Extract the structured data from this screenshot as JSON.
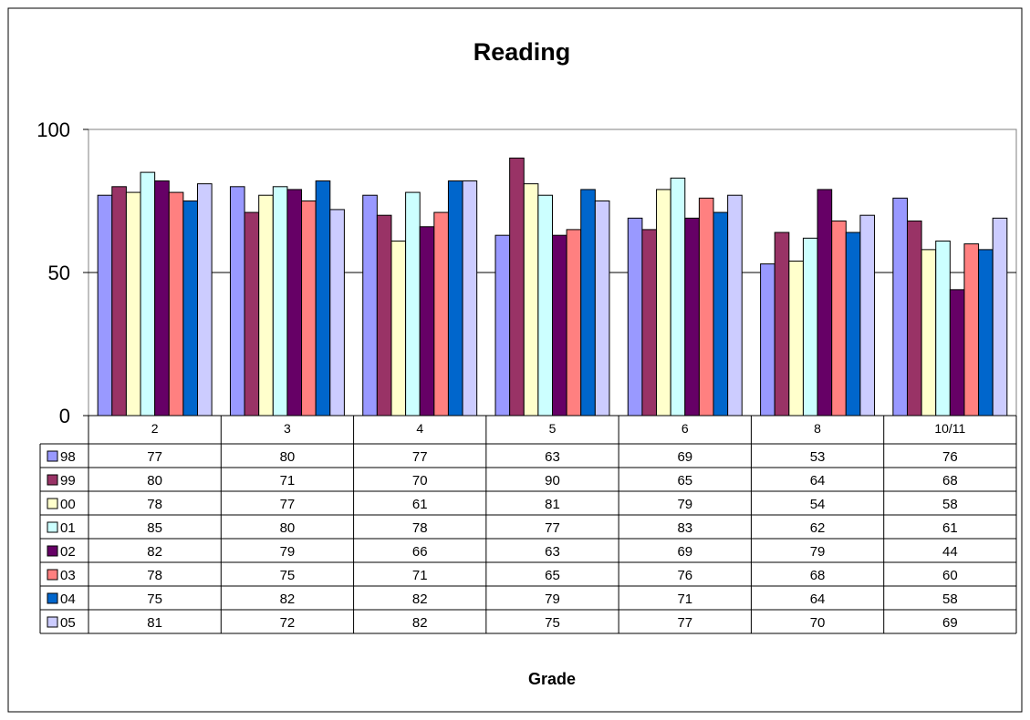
{
  "chart_data": {
    "type": "bar",
    "title": "Reading",
    "xlabel": "Grade",
    "ylabel": "",
    "ylim": [
      0,
      100
    ],
    "yticks": [
      0,
      50,
      100
    ],
    "grid": true,
    "legend": "data table, left",
    "categories": [
      "2",
      "3",
      "4",
      "5",
      "6",
      "8",
      "10/11"
    ],
    "series": [
      {
        "name": "98",
        "color": "#9999FF",
        "values": [
          77,
          80,
          77,
          63,
          69,
          53,
          76
        ]
      },
      {
        "name": "99",
        "color": "#993366",
        "values": [
          80,
          71,
          70,
          90,
          65,
          64,
          68
        ]
      },
      {
        "name": "00",
        "color": "#FFFFCC",
        "values": [
          78,
          77,
          61,
          81,
          79,
          54,
          58
        ]
      },
      {
        "name": "01",
        "color": "#CCFFFF",
        "values": [
          85,
          80,
          78,
          77,
          83,
          62,
          61
        ]
      },
      {
        "name": "02",
        "color": "#660066",
        "values": [
          82,
          79,
          66,
          63,
          69,
          79,
          44
        ]
      },
      {
        "name": "03",
        "color": "#FF8080",
        "values": [
          78,
          75,
          71,
          65,
          76,
          68,
          60
        ]
      },
      {
        "name": "04",
        "color": "#0066CC",
        "values": [
          75,
          82,
          82,
          79,
          71,
          64,
          58
        ]
      },
      {
        "name": "05",
        "color": "#CCCCFF",
        "values": [
          81,
          72,
          82,
          75,
          77,
          70,
          69
        ]
      }
    ]
  }
}
